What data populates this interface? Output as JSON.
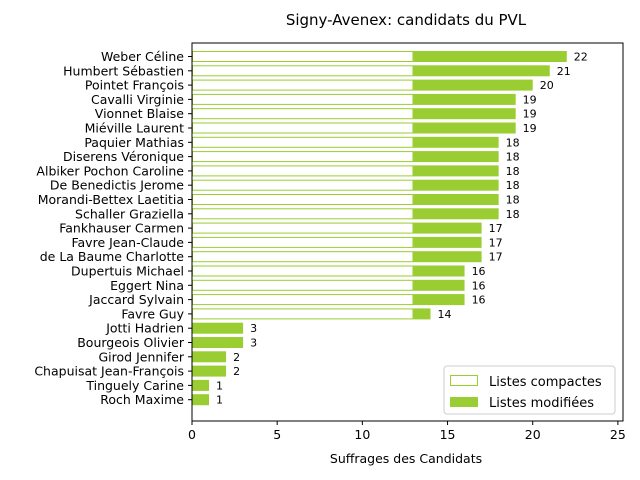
{
  "chart_data": {
    "type": "bar",
    "orientation": "horizontal",
    "stacked": true,
    "title": "Signy-Avenex: candidats du PVL",
    "xlabel": "Suffrages des Candidats",
    "ylabel": "",
    "xlim": [
      0,
      25.3
    ],
    "xticks": [
      0,
      5,
      10,
      15,
      20,
      25
    ],
    "grid": false,
    "legend_position": "lower-right",
    "categories": [
      "Weber Céline",
      "Humbert Sébastien",
      "Pointet François",
      "Cavalli Virginie",
      "Vionnet Blaise",
      "Miéville Laurent",
      "Paquier Mathias",
      "Diserens Véronique",
      "Albiker Pochon Caroline",
      "De Benedictis Jerome",
      "Morandi-Bettex Laetitia",
      "Schaller Graziella",
      "Fankhauser Carmen",
      "Favre Jean-Claude",
      "de La Baume Charlotte",
      "Dupertuis Michael",
      "Eggert Nina",
      "Jaccard Sylvain",
      "Favre Guy",
      "Jotti Hadrien",
      "Bourgeois Olivier",
      "Girod Jennifer",
      "Chapuisat Jean-François",
      "Tinguely Carine",
      "Roch Maxime"
    ],
    "series": [
      {
        "name": "Listes compactes",
        "style": "outline",
        "color": "#9acd32",
        "values": [
          13,
          13,
          13,
          13,
          13,
          13,
          13,
          13,
          13,
          13,
          13,
          13,
          13,
          13,
          13,
          13,
          13,
          13,
          13,
          0,
          0,
          0,
          0,
          0,
          0
        ]
      },
      {
        "name": "Listes modifiées",
        "style": "filled",
        "color": "#9acd32",
        "values": [
          9,
          8,
          7,
          6,
          6,
          6,
          5,
          5,
          5,
          5,
          5,
          5,
          4,
          4,
          4,
          3,
          3,
          3,
          1,
          3,
          3,
          2,
          2,
          1,
          1
        ]
      }
    ],
    "totals": [
      22,
      21,
      20,
      19,
      19,
      19,
      18,
      18,
      18,
      18,
      18,
      18,
      17,
      17,
      17,
      16,
      16,
      16,
      14,
      3,
      3,
      2,
      2,
      1,
      1
    ]
  }
}
